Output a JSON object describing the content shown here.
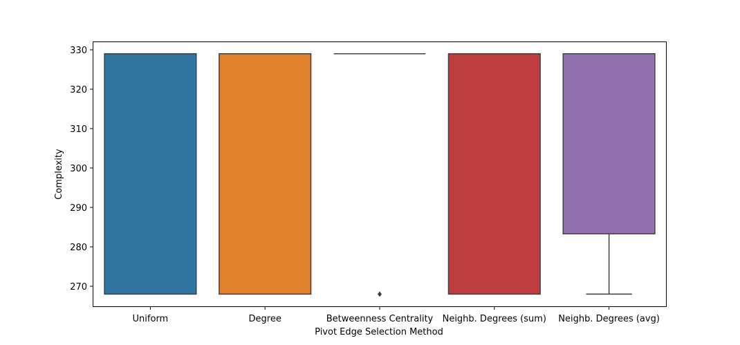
{
  "chart_data": {
    "type": "box",
    "title": "",
    "xlabel": "Pivot Edge Selection Method",
    "ylabel": "Complexity",
    "ylim": [
      265,
      332
    ],
    "yticks": [
      270,
      280,
      290,
      300,
      310,
      320,
      330
    ],
    "grid": false,
    "legend": "none",
    "categories": [
      "Uniform",
      "Degree",
      "Betweenness Centrality",
      "Neighb. Degrees (sum)",
      "Neighb. Degrees (avg)"
    ],
    "boxes": [
      {
        "category": "Uniform",
        "whisker_low": 268,
        "q1": 268,
        "median": 329,
        "q3": 329,
        "whisker_high": 329,
        "outliers": [],
        "color": "#3274a1"
      },
      {
        "category": "Degree",
        "whisker_low": 268,
        "q1": 268,
        "median": 329,
        "q3": 329,
        "whisker_high": 329,
        "outliers": [],
        "color": "#e1812c"
      },
      {
        "category": "Betweenness Centrality",
        "whisker_low": 329,
        "q1": 329,
        "median": 329,
        "q3": 329,
        "whisker_high": 329,
        "outliers": [
          268
        ],
        "color": "#3a923a"
      },
      {
        "category": "Neighb. Degrees (sum)",
        "whisker_low": 268,
        "q1": 268,
        "median": 329,
        "q3": 329,
        "whisker_high": 329,
        "outliers": [],
        "color": "#c03d3e"
      },
      {
        "category": "Neighb. Degrees (avg)",
        "whisker_low": 268,
        "q1": 283.3,
        "median": 329,
        "q3": 329,
        "whisker_high": 329,
        "outliers": [],
        "color": "#9372b2"
      }
    ]
  }
}
